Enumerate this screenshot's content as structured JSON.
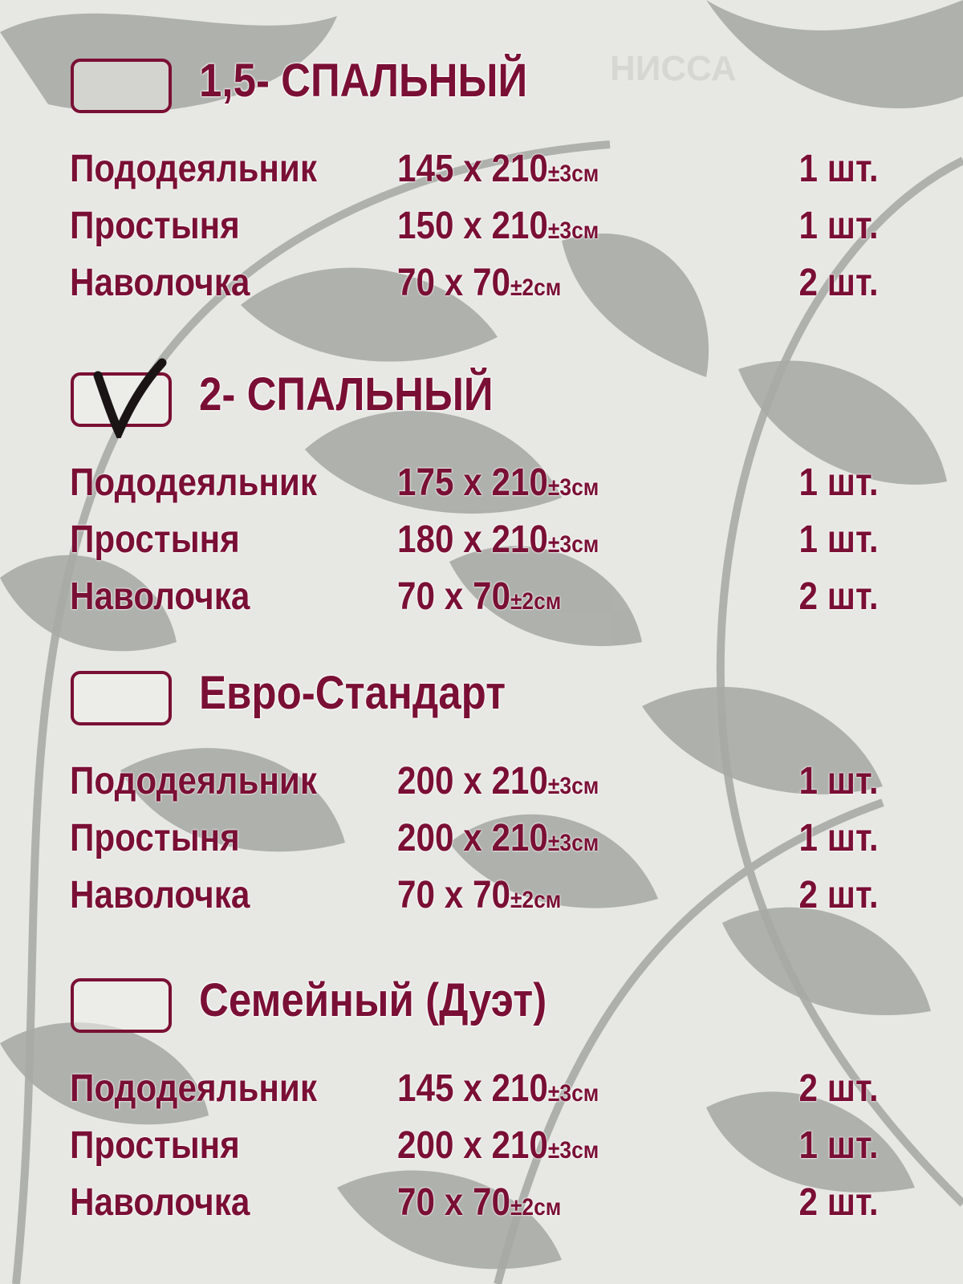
{
  "sections": [
    {
      "title": "1,5- СПАЛЬНЫЙ",
      "checked": false,
      "items": [
        {
          "name": "Пододеяльник",
          "size": "145 x 210",
          "tolerance": "±3см",
          "qty": "1 шт."
        },
        {
          "name": "Простыня",
          "size": "150 x 210",
          "tolerance": "±3см",
          "qty": "1 шт."
        },
        {
          "name": "Наволочка",
          "size": "70 x 70",
          "tolerance": "±2см",
          "qty": "2 шт."
        }
      ]
    },
    {
      "title": "2- СПАЛЬНЫЙ",
      "checked": true,
      "items": [
        {
          "name": "Пододеяльник",
          "size": "175 x 210",
          "tolerance": "±3см",
          "qty": "1 шт."
        },
        {
          "name": "Простыня",
          "size": "180 x 210",
          "tolerance": "±3см",
          "qty": "1 шт."
        },
        {
          "name": "Наволочка",
          "size": "70 x 70",
          "tolerance": "±2см",
          "qty": "2 шт."
        }
      ]
    },
    {
      "title": "Евро-Стандарт",
      "checked": false,
      "items": [
        {
          "name": "Пододеяльник",
          "size": "200 x 210",
          "tolerance": "±3см",
          "qty": "1 шт."
        },
        {
          "name": "Простыня",
          "size": "200 x 210",
          "tolerance": "±3см",
          "qty": "1 шт."
        },
        {
          "name": "Наволочка",
          "size": "70 x 70",
          "tolerance": "±2см",
          "qty": "2 шт."
        }
      ]
    },
    {
      "title": "Семейный (Дуэт)",
      "checked": false,
      "items": [
        {
          "name": "Пододеяльник",
          "size": "145 x 210",
          "tolerance": "±3см",
          "qty": "2 шт."
        },
        {
          "name": "Простыня",
          "size": "200 x 210",
          "tolerance": "±3см",
          "qty": "1 шт."
        },
        {
          "name": "Наволочка",
          "size": "70 x 70",
          "tolerance": "±2см",
          "qty": "2 шт."
        }
      ]
    }
  ],
  "watermark": "НИССА",
  "colors": {
    "text": "#7a0f35",
    "background": "#e7e8e4",
    "ornament": "#a8aba5",
    "checkmark": "#1a1414"
  }
}
